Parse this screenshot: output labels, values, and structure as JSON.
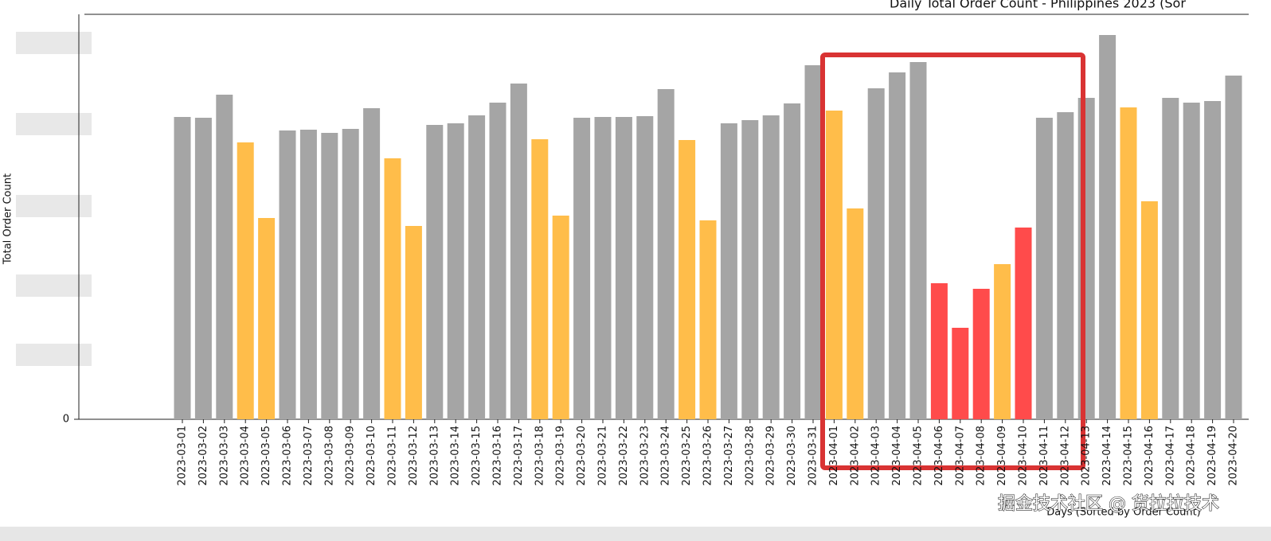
{
  "chart_data": {
    "type": "bar",
    "title": "Daily Total Order Count - Philippines 2023 (Sor",
    "x_label": "Days (Sorted by Order Count)",
    "y_label": "Total Order Count",
    "watermark": "掘金技术社区 @ 货拉拉技术",
    "categories": [
      "2023-03-01",
      "2023-03-02",
      "2023-03-03",
      "2023-03-04",
      "2023-03-05",
      "2023-03-06",
      "2023-03-07",
      "2023-03-08",
      "2023-03-09",
      "2023-03-10",
      "2023-03-11",
      "2023-03-12",
      "2023-03-13",
      "2023-03-14",
      "2023-03-15",
      "2023-03-16",
      "2023-03-17",
      "2023-03-18",
      "2023-03-19",
      "2023-03-20",
      "2023-03-21",
      "2023-03-22",
      "2023-03-23",
      "2023-03-24",
      "2023-03-25",
      "2023-03-26",
      "2023-03-27",
      "2023-03-28",
      "2023-03-29",
      "2023-03-30",
      "2023-03-31",
      "2023-04-01",
      "2023-04-02",
      "2023-04-03",
      "2023-04-04",
      "2023-04-05",
      "2023-04-06",
      "2023-04-07",
      "2023-04-08",
      "2023-04-09",
      "2023-04-10",
      "2023-04-11",
      "2023-04-12",
      "2023-04-13",
      "2023-04-14",
      "2023-04-15",
      "2023-04-16",
      "2023-04-17",
      "2023-04-18",
      "2023-04-19",
      "2023-04-20"
    ],
    "values": [
      380,
      379,
      408,
      348,
      253,
      363,
      364,
      360,
      365,
      391,
      328,
      243,
      370,
      372,
      382,
      398,
      422,
      352,
      256,
      379,
      380,
      380,
      381,
      415,
      351,
      250,
      372,
      376,
      382,
      397,
      445,
      388,
      265,
      416,
      436,
      449,
      171,
      115,
      164,
      195,
      241,
      379,
      386,
      404,
      483,
      392,
      274,
      404,
      398,
      400,
      432
    ],
    "colors": [
      "#a5a5a5",
      "#a5a5a5",
      "#a5a5a5",
      "#ffbd4a",
      "#ffbd4a",
      "#a5a5a5",
      "#a5a5a5",
      "#a5a5a5",
      "#a5a5a5",
      "#a5a5a5",
      "#ffbd4a",
      "#ffbd4a",
      "#a5a5a5",
      "#a5a5a5",
      "#a5a5a5",
      "#a5a5a5",
      "#a5a5a5",
      "#ffbd4a",
      "#ffbd4a",
      "#a5a5a5",
      "#a5a5a5",
      "#a5a5a5",
      "#a5a5a5",
      "#a5a5a5",
      "#ffbd4a",
      "#ffbd4a",
      "#a5a5a5",
      "#a5a5a5",
      "#a5a5a5",
      "#a5a5a5",
      "#a5a5a5",
      "#ffbd4a",
      "#ffbd4a",
      "#a5a5a5",
      "#a5a5a5",
      "#a5a5a5",
      "#ff4b4b",
      "#ff4b4b",
      "#ff4b4b",
      "#ffbd4a",
      "#ff4b4b",
      "#a5a5a5",
      "#a5a5a5",
      "#a5a5a5",
      "#a5a5a5",
      "#ffbd4a",
      "#ffbd4a",
      "#a5a5a5",
      "#a5a5a5",
      "#a5a5a5",
      "#a5a5a5"
    ],
    "ylim": [
      0,
      509
    ],
    "yticks": [
      0
    ]
  }
}
